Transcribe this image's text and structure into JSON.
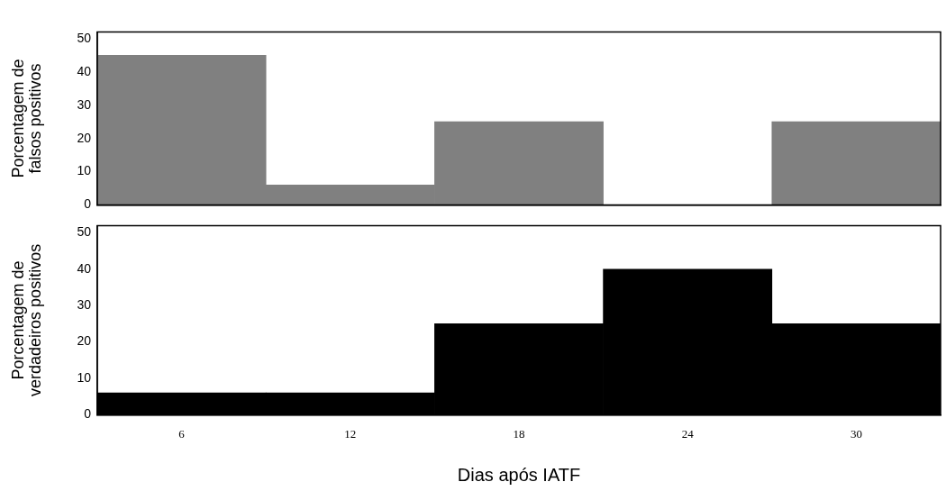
{
  "chart_data": [
    {
      "type": "bar",
      "ylabel": "Porcentagem de falsos positivos",
      "categories": [
        "6",
        "12",
        "18",
        "24",
        "30"
      ],
      "values": [
        45,
        6,
        25,
        0,
        25
      ],
      "color": "#808080",
      "ylim": [
        0,
        52
      ],
      "yticks": [
        0,
        10,
        20,
        30,
        40,
        50
      ],
      "tick_labels": "y",
      "grid": false,
      "legend": false
    },
    {
      "type": "bar",
      "ylabel": "Porcentagem de verdadeiros positivos",
      "xlabel": "Dias após IATF",
      "categories": [
        "6",
        "12",
        "18",
        "24",
        "30"
      ],
      "values": [
        6,
        6,
        25,
        40,
        25
      ],
      "color": "#000000",
      "ylim": [
        0,
        52
      ],
      "yticks": [
        0,
        10,
        20,
        30,
        40,
        50
      ],
      "grid": false,
      "legend": false
    }
  ]
}
